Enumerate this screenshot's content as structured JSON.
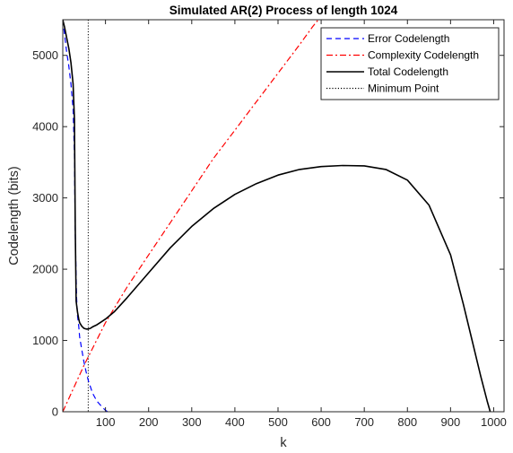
{
  "chart_data": {
    "type": "line",
    "title": "Simulated AR(2) Process of length 1024",
    "xlabel": "k",
    "ylabel": "Codelength (bits)",
    "xlim": [
      1,
      1024
    ],
    "ylim": [
      0,
      5500
    ],
    "xticks": [
      100,
      200,
      300,
      400,
      500,
      600,
      700,
      800,
      900,
      1000
    ],
    "yticks": [
      0,
      1000,
      2000,
      3000,
      4000,
      5000
    ],
    "legend_position": "top-right",
    "grid": false,
    "series": [
      {
        "name": "Error Codelength",
        "style": "dashed",
        "color": "#0000ff",
        "x": [
          1,
          5,
          10,
          15,
          20,
          25,
          28,
          30,
          33,
          35,
          38,
          40,
          45,
          50,
          55,
          60,
          70,
          80,
          90,
          100,
          105
        ],
        "y": [
          5500,
          5300,
          5050,
          4850,
          4600,
          4250,
          3600,
          2500,
          1600,
          1350,
          1200,
          1050,
          870,
          700,
          560,
          440,
          260,
          150,
          80,
          20,
          0
        ]
      },
      {
        "name": "Complexity Codelength",
        "style": "dash-dot",
        "color": "#ff0000",
        "x": [
          1,
          50,
          100,
          150,
          200,
          250,
          300,
          350,
          400,
          450,
          500,
          550,
          580,
          600
        ],
        "y": [
          0,
          650,
          1250,
          1750,
          2200,
          2650,
          3100,
          3550,
          3950,
          4350,
          4750,
          5150,
          5400,
          5550
        ]
      },
      {
        "name": "Total Codelength",
        "style": "solid",
        "color": "#000000",
        "x": [
          1,
          5,
          10,
          15,
          20,
          25,
          28,
          30,
          32,
          35,
          38,
          40,
          45,
          50,
          55,
          60,
          65,
          70,
          80,
          90,
          100,
          120,
          150,
          200,
          250,
          300,
          350,
          400,
          450,
          500,
          550,
          600,
          650,
          700,
          750,
          800,
          850,
          900,
          930,
          950,
          970,
          985,
          992
        ],
        "y": [
          5500,
          5400,
          5250,
          5100,
          4900,
          4600,
          4100,
          2600,
          1550,
          1400,
          1300,
          1250,
          1200,
          1170,
          1160,
          1160,
          1170,
          1190,
          1220,
          1260,
          1300,
          1400,
          1600,
          1950,
          2300,
          2600,
          2850,
          3050,
          3200,
          3320,
          3400,
          3440,
          3455,
          3450,
          3400,
          3250,
          2900,
          2200,
          1500,
          1000,
          500,
          150,
          0
        ]
      }
    ],
    "vlines": [
      {
        "name": "Minimum Point",
        "style": "dotted",
        "color": "#000000",
        "x": 60
      }
    ]
  }
}
